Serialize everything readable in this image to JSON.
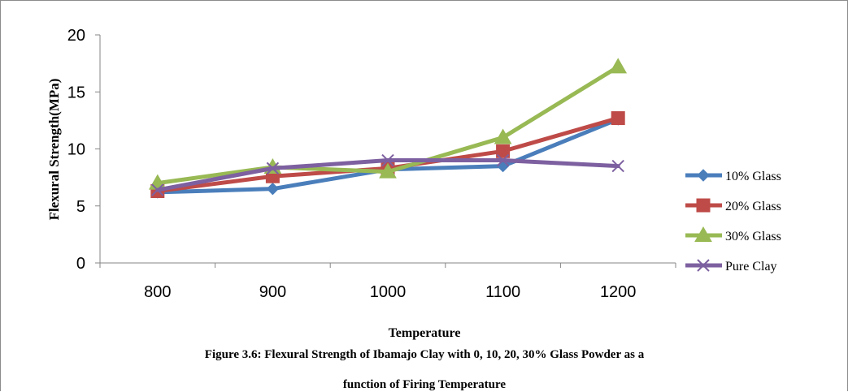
{
  "chart_data": {
    "type": "line",
    "title": "",
    "xlabel": "Temperature",
    "ylabel": "Flexural Strength(MPa)",
    "categories": [
      "800",
      "900",
      "1000",
      "1100",
      "1200"
    ],
    "ylim": [
      0,
      20
    ],
    "yticks": [
      "0",
      "5",
      "10",
      "15",
      "20"
    ],
    "grid": false,
    "legend_position": "right",
    "series": [
      {
        "name": "10% Glass",
        "values": [
          6.2,
          6.5,
          8.2,
          8.5,
          12.6
        ],
        "color": "#4a7ebb",
        "marker": "diamond"
      },
      {
        "name": "20% Glass",
        "values": [
          6.3,
          7.6,
          8.3,
          9.8,
          12.7
        ],
        "color": "#be4b48",
        "marker": "square"
      },
      {
        "name": "30% Glass",
        "values": [
          7.0,
          8.4,
          8.0,
          11.0,
          17.2
        ],
        "color": "#98b954",
        "marker": "triangle"
      },
      {
        "name": "Pure Clay",
        "values": [
          6.4,
          8.3,
          9.0,
          9.0,
          8.5
        ],
        "color": "#7d60a0",
        "marker": "x"
      }
    ]
  },
  "caption": {
    "line1": "Figure 3.6: Flexural Strength of  Ibamajo Clay with 0, 10, 20, 30% Glass Powder as a",
    "line2": "function of Firing Temperature"
  }
}
